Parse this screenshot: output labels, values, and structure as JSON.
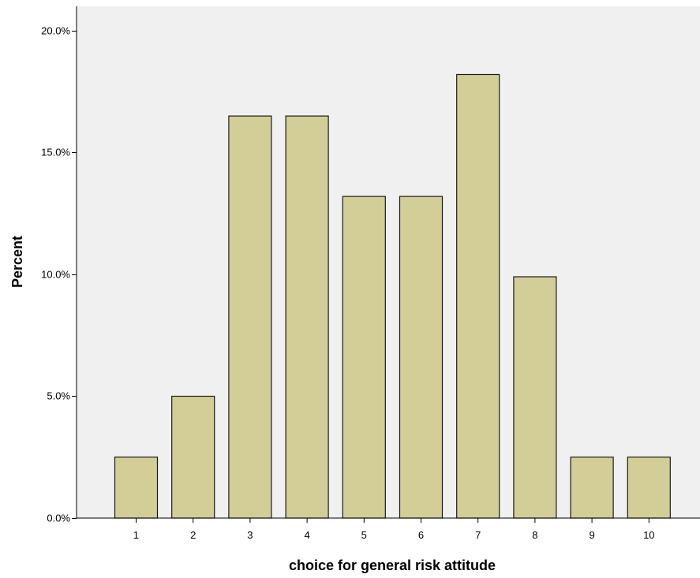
{
  "chart_data": {
    "type": "bar",
    "title": "",
    "xlabel": "choice for general risk attitude",
    "ylabel": "Percent",
    "categories": [
      "1",
      "2",
      "3",
      "4",
      "5",
      "6",
      "7",
      "8",
      "9",
      "10"
    ],
    "values": [
      2.5,
      5.0,
      16.5,
      16.5,
      13.2,
      13.2,
      18.2,
      9.9,
      2.5,
      2.5
    ],
    "ylim": [
      0,
      21
    ],
    "yticks": [
      0,
      5,
      10,
      15,
      20
    ],
    "ytick_labels": [
      "0.0%",
      "5.0%",
      "10.0%",
      "15.0%",
      "20.0%"
    ],
    "grid": false,
    "legend": "none",
    "colors": {
      "plot_background": "#f0f0f0",
      "bar_fill": "#d3ce97",
      "bar_stroke": "#1a1a1a",
      "axis": "#000000"
    }
  }
}
